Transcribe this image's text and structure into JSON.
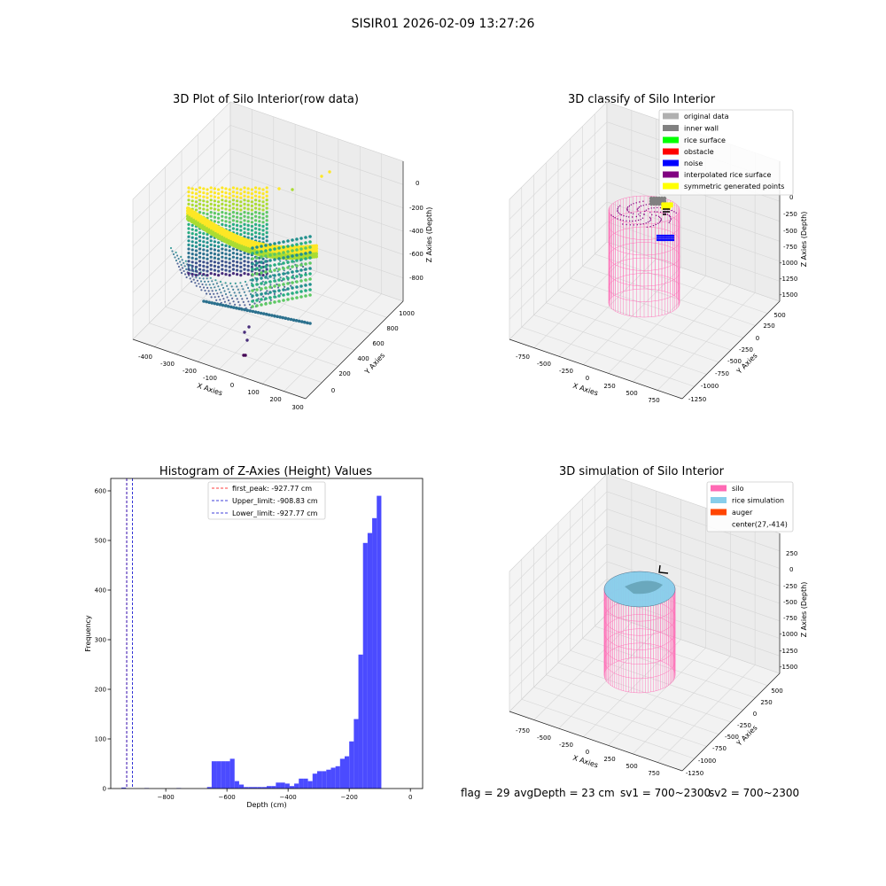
{
  "figure": {
    "suptitle": "SISIR01 2026-02-09 13:27:26"
  },
  "panels": {
    "raw": {
      "title": "3D Plot of Silo Interior(row data)",
      "xlabel": "X Axies",
      "ylabel": "Y Axies",
      "zlabel": "Z Axies (Depth)",
      "xticks": [
        "-400",
        "-300",
        "-200",
        "-100",
        "0",
        "100",
        "200",
        "300"
      ],
      "yticks": [
        "0",
        "200",
        "400",
        "600",
        "800",
        "1000"
      ],
      "zticks": [
        "0",
        "-200",
        "-400",
        "-600",
        "-800"
      ]
    },
    "classify": {
      "title": "3D classify of Silo Interior",
      "xlabel": "X Axies",
      "ylabel": "Y Axies",
      "zlabel": "Z Axies (Depth)",
      "xticks": [
        "-750",
        "-500",
        "-250",
        "0",
        "250",
        "500",
        "750"
      ],
      "yticks": [
        "500",
        "250",
        "0",
        "-250",
        "-500",
        "-750",
        "-1000",
        "-1250"
      ],
      "zticks": [
        "0",
        "-250",
        "-500",
        "-750",
        "-1000",
        "-1250",
        "-1500"
      ],
      "legend": [
        {
          "label": "original data",
          "color": "#b0b0b0"
        },
        {
          "label": "inner wall",
          "color": "#808080"
        },
        {
          "label": "rice surface",
          "color": "#00ff00"
        },
        {
          "label": "obstacle",
          "color": "#ff0000"
        },
        {
          "label": "noise",
          "color": "#0000ff"
        },
        {
          "label": "interpolated rice surface",
          "color": "#800080"
        },
        {
          "label": "symmetric generated points",
          "color": "#ffff00"
        }
      ]
    },
    "simulation": {
      "title": "3D simulation of Silo Interior",
      "xlabel": "X Axies",
      "ylabel": "Y Axies",
      "zlabel": "Z Axies (Depth)",
      "xticks": [
        "-750",
        "-500",
        "-250",
        "0",
        "250",
        "500",
        "750"
      ],
      "yticks": [
        "500",
        "250",
        "0",
        "-250",
        "-500",
        "-750",
        "-1000",
        "-1250"
      ],
      "zticks": [
        "250",
        "0",
        "-250",
        "-500",
        "-750",
        "-1000",
        "-1250",
        "-1500"
      ],
      "legend": [
        {
          "label": "silo",
          "color": "#ff69b4"
        },
        {
          "label": "rice simulation",
          "color": "#87ceeb"
        },
        {
          "label": "auger",
          "color": "#ff4500"
        },
        {
          "label": "center(27,-414)",
          "color": ""
        }
      ]
    }
  },
  "status": {
    "flag": "flag = 29",
    "avg_depth": "avgDepth = 23 cm",
    "sv1": "sv1 = 700~2300",
    "sv2": "sv2 = 700~2300"
  },
  "chart_data": [
    {
      "type": "scatter",
      "title": "3D Plot of Silo Interior(row data)",
      "xlabel": "X Axies",
      "ylabel": "Y Axies",
      "zlabel": "Z Axies (Depth)",
      "xlim": [
        -450,
        320
      ],
      "ylim": [
        -100,
        1050
      ],
      "zlim": [
        -950,
        60
      ],
      "colormap": "viridis (by depth)"
    },
    {
      "type": "scatter",
      "title": "3D classify of Silo Interior",
      "xlabel": "X Axies",
      "ylabel": "Y Axies",
      "zlabel": "Z Axies (Depth)",
      "xlim": [
        -850,
        850
      ],
      "ylim": [
        -1350,
        600
      ],
      "zlim": [
        -1600,
        100
      ],
      "series": [
        {
          "name": "original data"
        },
        {
          "name": "inner wall"
        },
        {
          "name": "rice surface"
        },
        {
          "name": "obstacle"
        },
        {
          "name": "noise"
        },
        {
          "name": "interpolated rice surface"
        },
        {
          "name": "symmetric generated points"
        }
      ]
    },
    {
      "type": "bar",
      "title": "Histogram of Z-Axies (Height) Values",
      "xlabel": "Depth (cm)",
      "ylabel": "Frequency",
      "xlim": [
        -980,
        40
      ],
      "ylim": [
        0,
        625
      ],
      "xticks": [
        -800,
        -600,
        -400,
        -200,
        0
      ],
      "yticks": [
        0,
        100,
        200,
        300,
        400,
        500,
        600
      ],
      "bar_color": "#4b4bff",
      "bins": [
        {
          "x0": -945,
          "x1": -930,
          "value": 2
        },
        {
          "x0": -870,
          "x1": -855,
          "value": 1
        },
        {
          "x0": -765,
          "x1": -750,
          "value": 1
        },
        {
          "x0": -665,
          "x1": -650,
          "value": 3
        },
        {
          "x0": -650,
          "x1": -635,
          "value": 55
        },
        {
          "x0": -635,
          "x1": -620,
          "value": 55
        },
        {
          "x0": -620,
          "x1": -605,
          "value": 55
        },
        {
          "x0": -605,
          "x1": -590,
          "value": 55
        },
        {
          "x0": -590,
          "x1": -575,
          "value": 60
        },
        {
          "x0": -575,
          "x1": -560,
          "value": 15
        },
        {
          "x0": -560,
          "x1": -545,
          "value": 8
        },
        {
          "x0": -545,
          "x1": -530,
          "value": 3
        },
        {
          "x0": -530,
          "x1": -515,
          "value": 3
        },
        {
          "x0": -515,
          "x1": -500,
          "value": 3
        },
        {
          "x0": -500,
          "x1": -485,
          "value": 3
        },
        {
          "x0": -485,
          "x1": -470,
          "value": 3
        },
        {
          "x0": -470,
          "x1": -455,
          "value": 5
        },
        {
          "x0": -455,
          "x1": -440,
          "value": 5
        },
        {
          "x0": -440,
          "x1": -425,
          "value": 12
        },
        {
          "x0": -425,
          "x1": -410,
          "value": 12
        },
        {
          "x0": -410,
          "x1": -395,
          "value": 10
        },
        {
          "x0": -395,
          "x1": -380,
          "value": 5
        },
        {
          "x0": -380,
          "x1": -365,
          "value": 10
        },
        {
          "x0": -365,
          "x1": -350,
          "value": 20
        },
        {
          "x0": -350,
          "x1": -335,
          "value": 20
        },
        {
          "x0": -335,
          "x1": -320,
          "value": 15
        },
        {
          "x0": -320,
          "x1": -305,
          "value": 30
        },
        {
          "x0": -305,
          "x1": -290,
          "value": 35
        },
        {
          "x0": -290,
          "x1": -275,
          "value": 35
        },
        {
          "x0": -275,
          "x1": -260,
          "value": 38
        },
        {
          "x0": -260,
          "x1": -245,
          "value": 42
        },
        {
          "x0": -245,
          "x1": -230,
          "value": 45
        },
        {
          "x0": -230,
          "x1": -215,
          "value": 60
        },
        {
          "x0": -215,
          "x1": -200,
          "value": 65
        },
        {
          "x0": -200,
          "x1": -185,
          "value": 95
        },
        {
          "x0": -185,
          "x1": -170,
          "value": 140
        },
        {
          "x0": -170,
          "x1": -155,
          "value": 270
        },
        {
          "x0": -155,
          "x1": -140,
          "value": 495
        },
        {
          "x0": -140,
          "x1": -125,
          "value": 515
        },
        {
          "x0": -125,
          "x1": -110,
          "value": 545
        },
        {
          "x0": -110,
          "x1": -95,
          "value": 590
        }
      ],
      "vlines": [
        {
          "label": "first_peak: -927.77 cm",
          "x": -927.77,
          "color": "#ff0000"
        },
        {
          "label": "Upper_limit: -908.83 cm",
          "x": -908.83,
          "color": "#0000cc"
        },
        {
          "label": "Lower_limit: -927.77 cm",
          "x": -927.77,
          "color": "#0000cc"
        }
      ]
    },
    {
      "type": "scatter",
      "title": "3D simulation of Silo Interior",
      "xlabel": "X Axies",
      "ylabel": "Y Axies",
      "zlabel": "Z Axies (Depth)",
      "xlim": [
        -850,
        850
      ],
      "ylim": [
        -1350,
        600
      ],
      "zlim": [
        -1600,
        300
      ],
      "series": [
        {
          "name": "silo"
        },
        {
          "name": "rice simulation"
        },
        {
          "name": "auger"
        },
        {
          "name": "center(27,-414)"
        }
      ]
    }
  ]
}
